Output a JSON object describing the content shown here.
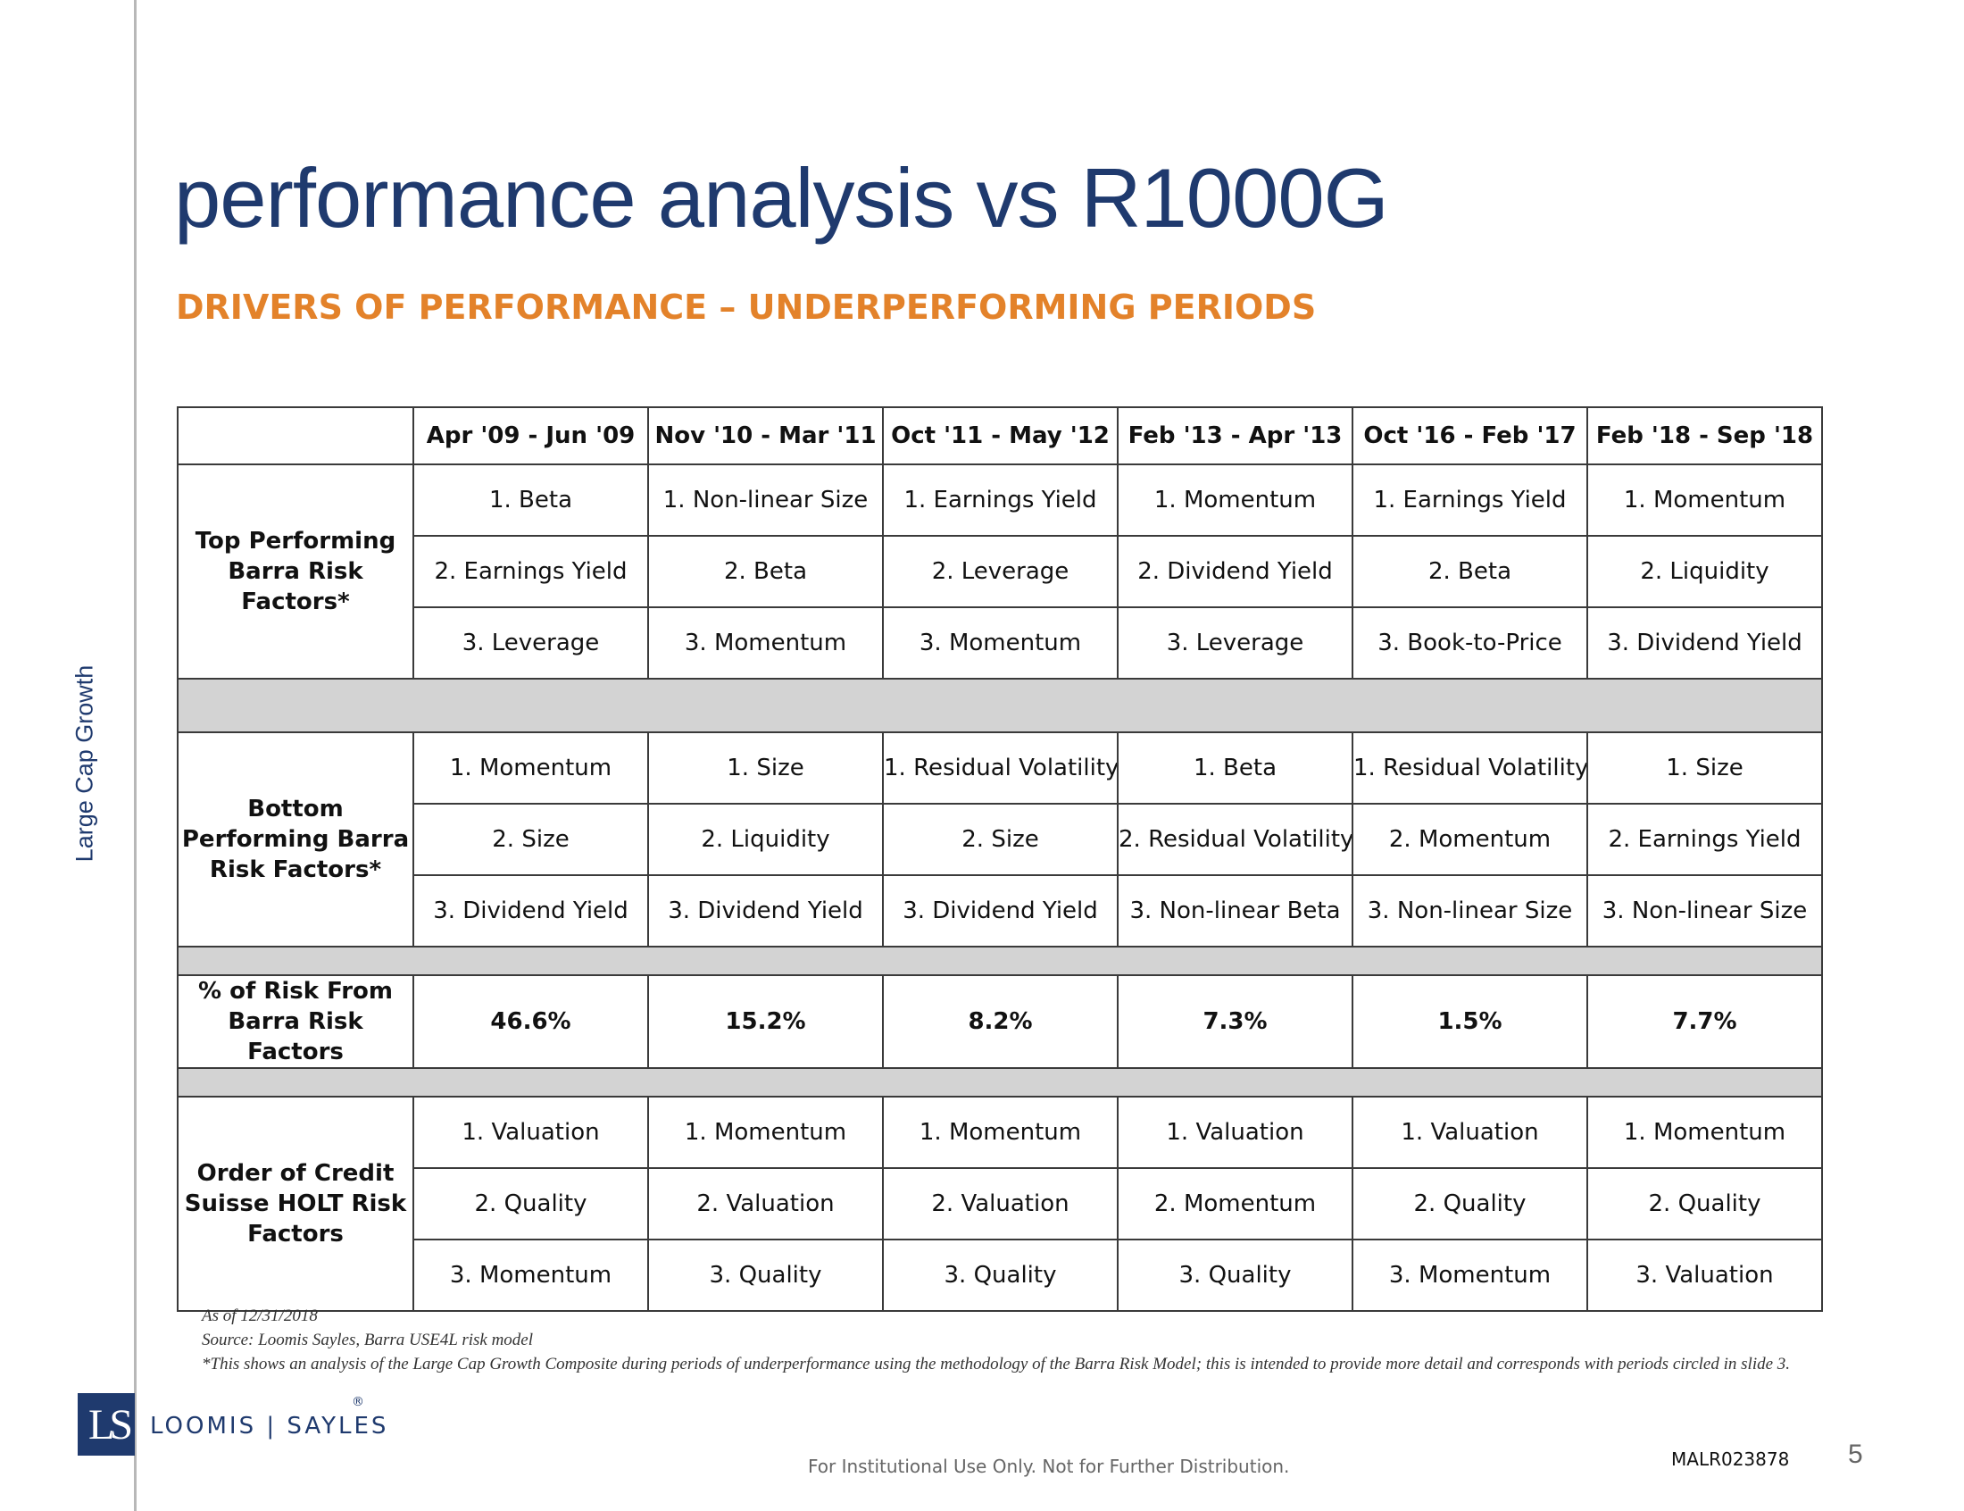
{
  "side_label": "Large Cap Growth",
  "title": "performance analysis vs R1000G",
  "subtitle": "DRIVERS OF PERFORMANCE – UNDERPERFORMING PERIODS",
  "table": {
    "periods": [
      "Apr '09 - Jun '09",
      "Nov '10 - Mar '11",
      "Oct '11 - May '12",
      "Feb '13 - Apr '13",
      "Oct '16 - Feb '17",
      "Feb '18 - Sep '18"
    ],
    "top": {
      "label": "Top Performing Barra Risk Factors*",
      "rows": [
        [
          "1. Beta",
          "1. Non-linear Size",
          "1. Earnings Yield",
          "1. Momentum",
          "1. Earnings Yield",
          "1. Momentum"
        ],
        [
          "2. Earnings Yield",
          "2. Beta",
          "2. Leverage",
          "2. Dividend Yield",
          "2. Beta",
          "2. Liquidity"
        ],
        [
          "3. Leverage",
          "3. Momentum",
          "3. Momentum",
          "3. Leverage",
          "3. Book-to-Price",
          "3. Dividend Yield"
        ]
      ]
    },
    "bottom": {
      "label": "Bottom Performing Barra Risk Factors*",
      "rows": [
        [
          "1. Momentum",
          "1. Size",
          "1. Residual Volatility",
          "1. Beta",
          "1. Residual Volatility",
          "1. Size"
        ],
        [
          "2. Size",
          "2. Liquidity",
          "2. Size",
          "2. Residual Volatility",
          "2. Momentum",
          "2. Earnings Yield"
        ],
        [
          "3. Dividend Yield",
          "3. Dividend Yield",
          "3. Dividend Yield",
          "3. Non-linear Beta",
          "3. Non-linear Size",
          "3. Non-linear Size"
        ]
      ]
    },
    "pct": {
      "label": "% of Risk From Barra Risk Factors",
      "values": [
        "46.6%",
        "15.2%",
        "8.2%",
        "7.3%",
        "1.5%",
        "7.7%"
      ]
    },
    "holt": {
      "label": "Order of Credit Suisse HOLT Risk Factors",
      "rows": [
        [
          "1. Valuation",
          "1. Momentum",
          "1. Momentum",
          "1. Valuation",
          "1. Valuation",
          "1. Momentum"
        ],
        [
          "2. Quality",
          "2. Valuation",
          "2. Valuation",
          "2. Momentum",
          "2. Quality",
          "2. Quality"
        ],
        [
          "3. Momentum",
          "3. Quality",
          "3. Quality",
          "3. Quality",
          "3. Momentum",
          "3. Valuation"
        ]
      ]
    }
  },
  "footnotes": {
    "as_of": "As of 12/31/2018",
    "source": "Source: Loomis Sayles, Barra USE4L risk model",
    "note": "*This shows an analysis of the Large Cap Growth Composite during periods of underperformance using the methodology of the Barra Risk Model; this is intended to provide more detail and corresponds with periods circled in slide 3."
  },
  "logo": {
    "mark": "LS",
    "text": "LOOMIS | SAYLES",
    "reg": "®"
  },
  "footer_note": "For Institutional Use Only. Not for Further Distribution.",
  "doc_id": "MALR023878",
  "page_number": "5"
}
